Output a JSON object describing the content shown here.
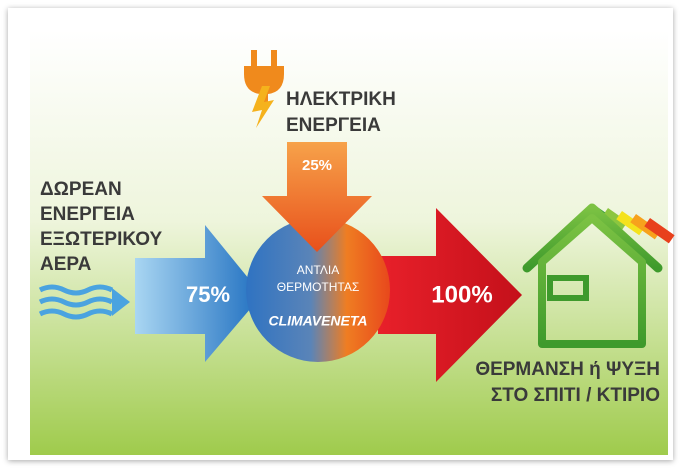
{
  "electric": {
    "lines": [
      "ΗΛΕΚΤΡΙΚΗ",
      "ΕΝΕΡΓΕΙΑ"
    ],
    "percent": "25%"
  },
  "air": {
    "lines": [
      "ΔΩΡΕΑΝ",
      "ΕΝΕΡΓΕΙΑ",
      "ΕΞΩΤΕΡΙΚΟΥ",
      "ΑΕΡΑ"
    ],
    "percent": "75%"
  },
  "pump": {
    "lines": [
      "ΑΝΤΛΙΑ",
      "ΘΕΡΜΟΤΗΤΑΣ"
    ],
    "brand": "CLIMAVENETA"
  },
  "output": {
    "percent": "100%",
    "lines": [
      "ΘΕΡΜΑΝΣΗ ή ΨΥΞΗ",
      "ΣΤΟ ΣΠΙΤΙ / ΚΤΙΡΙΟ"
    ]
  }
}
